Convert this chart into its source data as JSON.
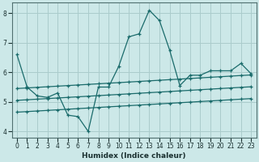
{
  "xlabel": "Humidex (Indice chaleur)",
  "bg_color": "#cce8e8",
  "grid_color": "#aacccc",
  "line_color": "#1a6b6b",
  "xlim": [
    -0.5,
    23.5
  ],
  "ylim": [
    3.8,
    8.35
  ],
  "yticks": [
    4,
    5,
    6,
    7,
    8
  ],
  "xticks": [
    0,
    1,
    2,
    3,
    4,
    5,
    6,
    7,
    8,
    9,
    10,
    11,
    12,
    13,
    14,
    15,
    16,
    17,
    18,
    19,
    20,
    21,
    22,
    23
  ],
  "line1_y": [
    6.6,
    5.5,
    5.2,
    5.15,
    5.3,
    4.55,
    4.5,
    4.0,
    5.5,
    5.5,
    6.2,
    7.2,
    7.3,
    8.1,
    7.75,
    6.75,
    5.55,
    5.9,
    5.9,
    6.05,
    6.05,
    6.05,
    6.3,
    5.95
  ],
  "line2_y": [
    5.45,
    5.47,
    5.49,
    5.51,
    5.53,
    5.55,
    5.57,
    5.59,
    5.61,
    5.63,
    5.65,
    5.67,
    5.69,
    5.71,
    5.73,
    5.75,
    5.77,
    5.79,
    5.81,
    5.83,
    5.85,
    5.87,
    5.89,
    5.91
  ],
  "line3_y": [
    5.05,
    5.07,
    5.09,
    5.11,
    5.13,
    5.15,
    5.17,
    5.19,
    5.21,
    5.23,
    5.25,
    5.27,
    5.29,
    5.31,
    5.33,
    5.35,
    5.37,
    5.39,
    5.41,
    5.43,
    5.45,
    5.47,
    5.49,
    5.51
  ],
  "line4_y": [
    4.65,
    4.67,
    4.69,
    4.71,
    4.73,
    4.75,
    4.77,
    4.79,
    4.81,
    4.83,
    4.85,
    4.87,
    4.89,
    4.91,
    4.93,
    4.95,
    4.97,
    4.99,
    5.01,
    5.03,
    5.05,
    5.07,
    5.09,
    5.11
  ]
}
